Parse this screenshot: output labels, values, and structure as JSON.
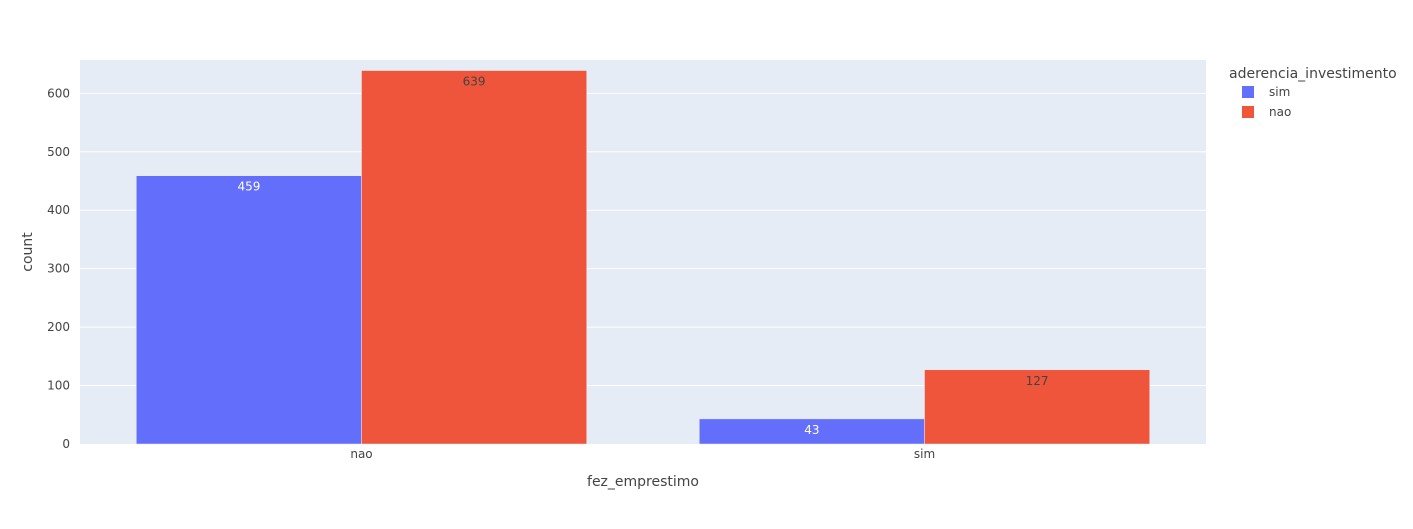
{
  "chart_data": {
    "type": "bar",
    "barmode": "group",
    "title": "",
    "xlabel": "fez_emprestimo",
    "ylabel": "count",
    "categories": [
      "nao",
      "sim"
    ],
    "ylim": [
      0,
      657
    ],
    "yticks": [
      0,
      100,
      200,
      300,
      400,
      500,
      600
    ],
    "grid": true,
    "legend": {
      "title": "aderencia_investimento",
      "placement": "top-right, outside plot"
    },
    "series": [
      {
        "name": "sim",
        "color": "#636efa",
        "values": [
          459,
          43
        ],
        "label_color": "#ffffff"
      },
      {
        "name": "nao",
        "color": "#ef553b",
        "values": [
          639,
          127
        ],
        "label_color": "#444444"
      }
    ],
    "colors": {
      "plot_background": "#e5ecf6",
      "grid": "#ffffff",
      "text": "#444444"
    }
  }
}
